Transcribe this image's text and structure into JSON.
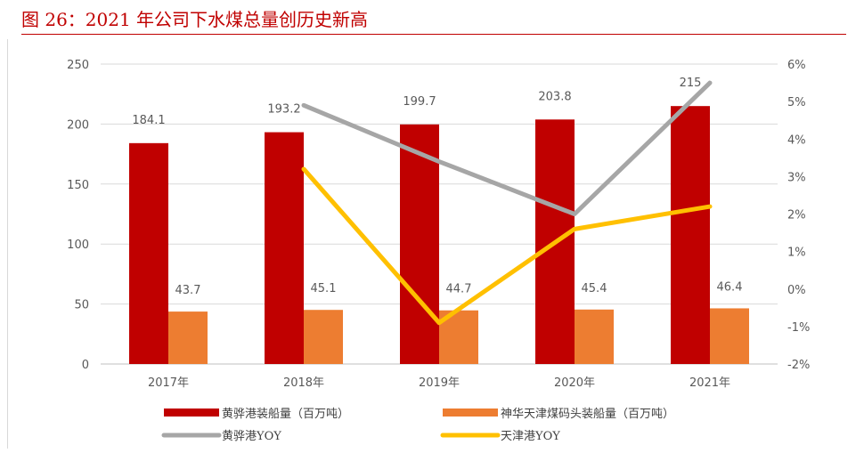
{
  "figure": {
    "title": "图 26：2021 年公司下水煤总量创历史新高"
  },
  "colors": {
    "title": "#c00000",
    "bar_huanghua": "#c00000",
    "bar_shenhua": "#ed7d31",
    "line_huanghua": "#a6a6a6",
    "line_tianjin": "#ffc000"
  },
  "chart_data": {
    "type": "bar",
    "categories": [
      "2017年",
      "2018年",
      "2019年",
      "2020年",
      "2021年"
    ],
    "series": [
      {
        "name": "黄骅港装船量（百万吨）",
        "kind": "bar",
        "axis": "left",
        "values": [
          184.1,
          193.2,
          199.7,
          203.8,
          215
        ]
      },
      {
        "name": "神华天津煤码头装船量（百万吨）",
        "kind": "bar",
        "axis": "left",
        "values": [
          43.7,
          45.1,
          44.7,
          45.4,
          46.4
        ]
      },
      {
        "name": "黄骅港YOY",
        "kind": "line",
        "axis": "right",
        "values": [
          null,
          4.9,
          3.4,
          2.0,
          5.5
        ]
      },
      {
        "name": "天津港YOY",
        "kind": "line",
        "axis": "right",
        "values": [
          null,
          3.2,
          -0.9,
          1.6,
          2.2
        ]
      }
    ],
    "left_axis": {
      "ylim": [
        0,
        250
      ],
      "ticks": [
        "0",
        "50",
        "100",
        "150",
        "200",
        "250"
      ]
    },
    "right_axis": {
      "ylim": [
        -2,
        6
      ],
      "ticks": [
        "-2%",
        "-1%",
        "0%",
        "1%",
        "2%",
        "3%",
        "4%",
        "5%",
        "6%"
      ]
    },
    "grid": true,
    "legend_position": "bottom",
    "data_labels": {
      "bar_huanghua": [
        "184.1",
        "193.2",
        "199.7",
        "203.8",
        "215"
      ],
      "bar_shenhua": [
        "43.7",
        "45.1",
        "44.7",
        "45.4",
        "46.4"
      ]
    }
  }
}
